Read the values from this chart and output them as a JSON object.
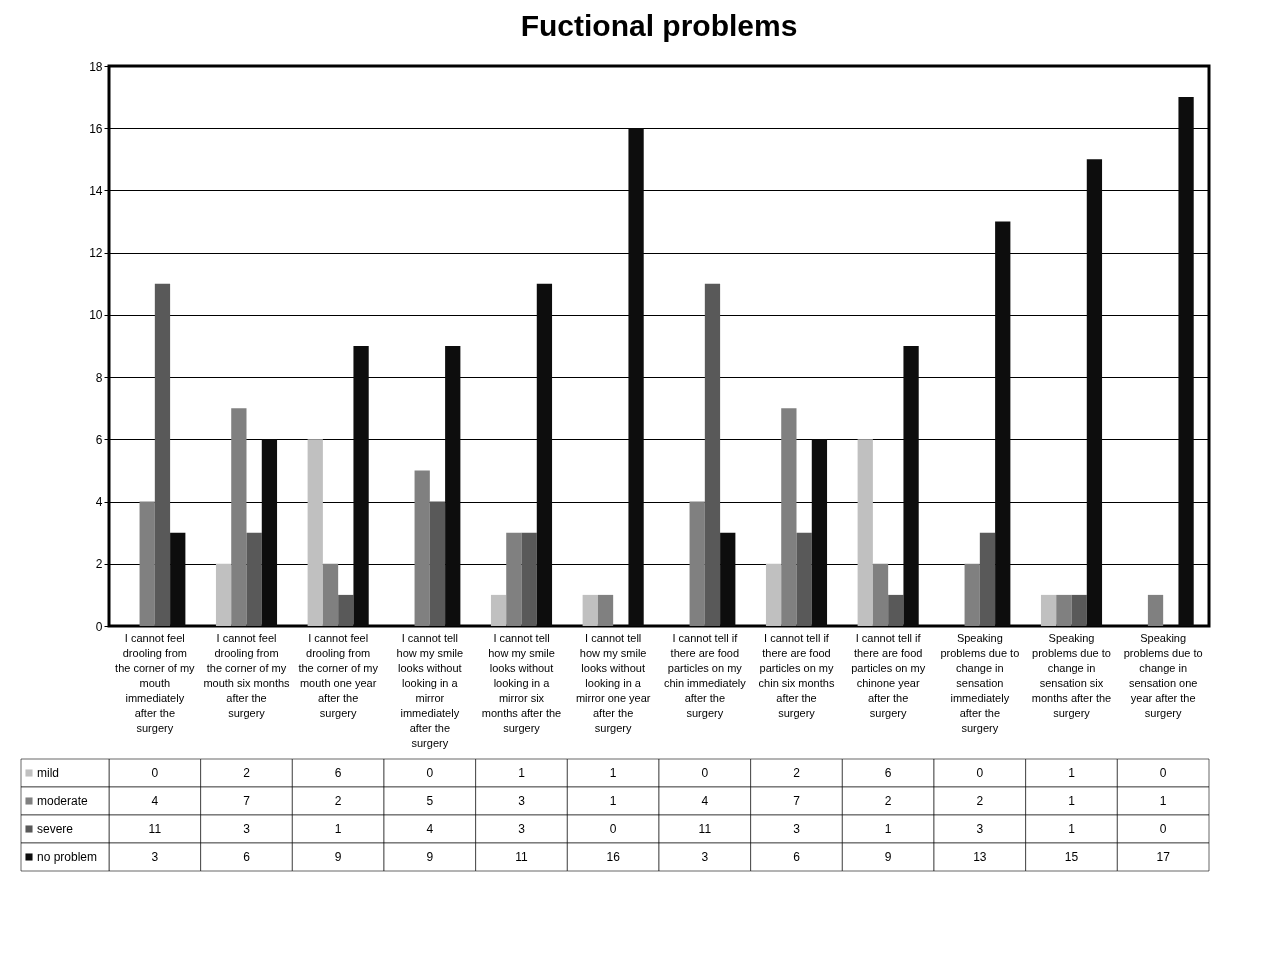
{
  "chart_data": {
    "type": "bar",
    "title": "Fuctional problems",
    "categories": [
      "I cannot feel drooling from the corner of my mouth immediately after the surgery",
      "I cannot feel drooling from the corner of my mouth six months after the surgery",
      "I cannot feel drooling from the corner of my mouth one year after the surgery",
      "I cannot tell how my smile looks without looking in a mirror immediately after the surgery",
      "I cannot tell how my smile looks without looking in a mirror six months after the surgery",
      "I cannot tell how my smile looks without looking in a mirror one year after the surgery",
      "I cannot tell if there are food particles on my chin immediately after the surgery",
      "I cannot tell if there are food particles on my chin six months after the surgery",
      "I cannot tell if there are food particles on my chinone year after the surgery",
      "Speaking problems due to change in sensation immediately after the surgery",
      "Speaking problems due to change in sensation six months after the surgery",
      "Speaking problems due to change in sensation one year after the surgery"
    ],
    "series": [
      {
        "name": "mild",
        "color": "#c0c0c0",
        "values": [
          0,
          2,
          6,
          0,
          1,
          1,
          0,
          2,
          6,
          0,
          1,
          0
        ]
      },
      {
        "name": "moderate",
        "color": "#808080",
        "values": [
          4,
          7,
          2,
          5,
          3,
          1,
          4,
          7,
          2,
          2,
          1,
          1
        ]
      },
      {
        "name": "severe",
        "color": "#595959",
        "values": [
          11,
          3,
          1,
          4,
          3,
          0,
          11,
          3,
          1,
          3,
          1,
          0
        ]
      },
      {
        "name": "no problem",
        "color": "#0d0d0d",
        "values": [
          3,
          6,
          9,
          9,
          11,
          16,
          3,
          6,
          9,
          13,
          15,
          17
        ]
      }
    ],
    "ylim": [
      0,
      18
    ],
    "yticks": [
      0,
      2,
      4,
      6,
      8,
      10,
      12,
      14,
      16,
      18
    ],
    "grid": "y",
    "legend": "bottom left",
    "data_labels": true
  }
}
